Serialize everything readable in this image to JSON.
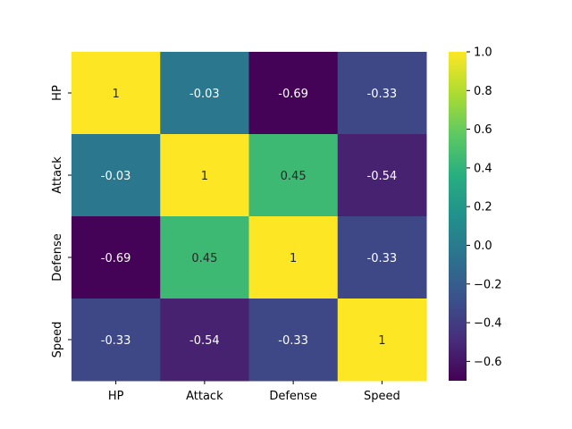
{
  "chart_data": {
    "type": "heatmap",
    "title": "",
    "xlabel": "",
    "ylabel": "",
    "x_categories": [
      "HP",
      "Attack",
      "Defense",
      "Speed"
    ],
    "y_categories": [
      "HP",
      "Attack",
      "Defense",
      "Speed"
    ],
    "values": [
      [
        1,
        -0.03,
        -0.69,
        -0.33
      ],
      [
        -0.03,
        1,
        0.45,
        -0.54
      ],
      [
        -0.69,
        0.45,
        1,
        -0.33
      ],
      [
        -0.33,
        -0.54,
        -0.33,
        1
      ]
    ],
    "cell_labels": [
      [
        "1",
        "-0.03",
        "-0.69",
        "-0.33"
      ],
      [
        "-0.03",
        "1",
        "0.45",
        "-0.54"
      ],
      [
        "-0.69",
        "0.45",
        "1",
        "-0.33"
      ],
      [
        "-0.33",
        "-0.54",
        "-0.33",
        "1"
      ]
    ],
    "colormap": "viridis",
    "colorbar": {
      "range": [
        -0.7,
        1.0
      ],
      "ticks": [
        1.0,
        0.8,
        0.6,
        0.4,
        0.2,
        0.0,
        -0.2,
        -0.4,
        -0.6
      ],
      "tick_labels": [
        "1.0",
        "0.8",
        "0.6",
        "0.4",
        "0.2",
        "0.0",
        "−0.2",
        "−0.4",
        "−0.6"
      ],
      "placement": "right"
    },
    "grid": false
  }
}
